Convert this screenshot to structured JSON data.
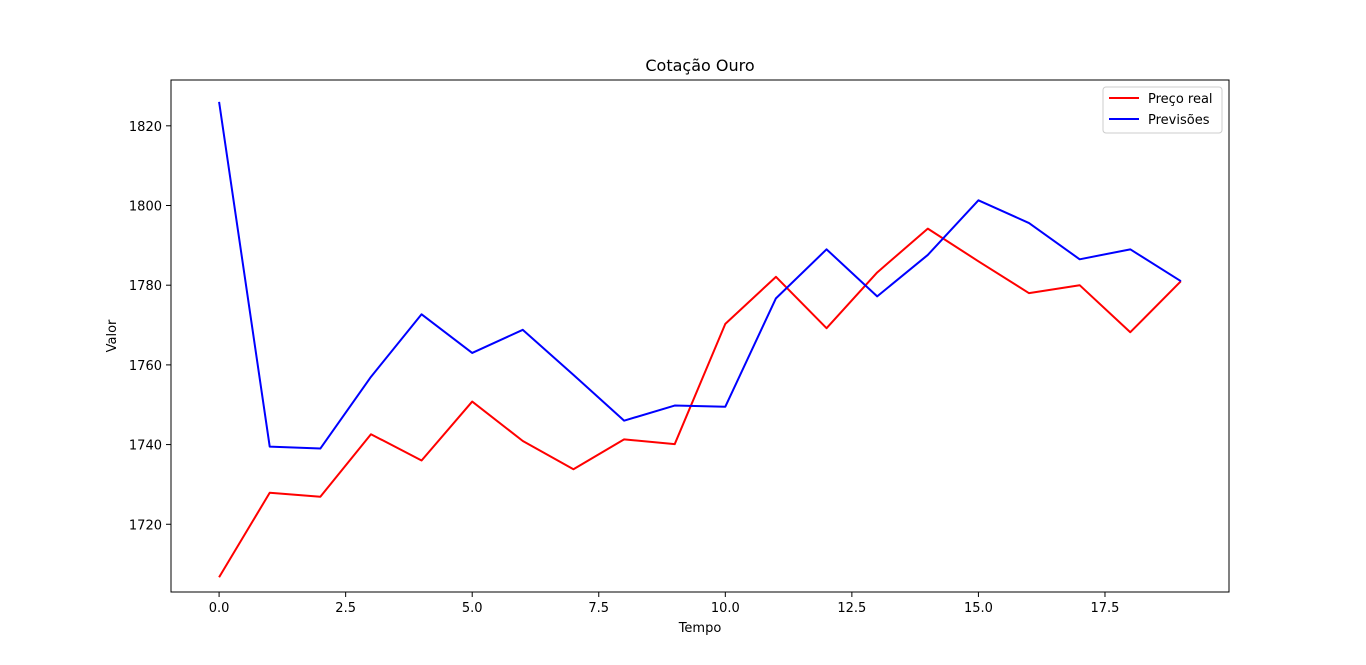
{
  "chart_data": {
    "type": "line",
    "title": "Cotação Ouro",
    "xlabel": "Tempo",
    "ylabel": "Valor",
    "xlim": [
      -0.95,
      19.95
    ],
    "ylim": [
      1703,
      1831.5
    ],
    "xticks": [
      0.0,
      2.5,
      5.0,
      7.5,
      10.0,
      12.5,
      15.0,
      17.5
    ],
    "xtick_labels": [
      "0.0",
      "2.5",
      "5.0",
      "7.5",
      "10.0",
      "12.5",
      "15.0",
      "17.5"
    ],
    "yticks": [
      1720,
      1740,
      1760,
      1780,
      1800,
      1820
    ],
    "ytick_labels": [
      "1720",
      "1740",
      "1760",
      "1780",
      "1800",
      "1820"
    ],
    "grid": false,
    "legend_position": "top-right",
    "x": [
      0,
      1,
      2,
      3,
      4,
      5,
      6,
      7,
      8,
      9,
      10,
      11,
      12,
      13,
      14,
      15,
      16,
      17,
      18,
      19
    ],
    "series": [
      {
        "name": "Preço real",
        "color": "#ff0000",
        "values": [
          1706.7,
          1727.9,
          1726.9,
          1742.6,
          1736.0,
          1750.8,
          1740.9,
          1733.8,
          1741.3,
          1740.1,
          1770.3,
          1782.1,
          1769.2,
          1783.2,
          1794.2,
          1786.0,
          1778.0,
          1780.0,
          1768.2,
          1781.0
        ]
      },
      {
        "name": "Previsões",
        "color": "#0000ff",
        "values": [
          1826.0,
          1739.5,
          1739.0,
          1757.0,
          1772.7,
          1763.0,
          1768.8,
          1757.5,
          1746.0,
          1749.8,
          1749.5,
          1776.7,
          1789.0,
          1777.2,
          1787.6,
          1801.3,
          1795.6,
          1786.5,
          1789.0,
          1781.0
        ]
      }
    ]
  }
}
